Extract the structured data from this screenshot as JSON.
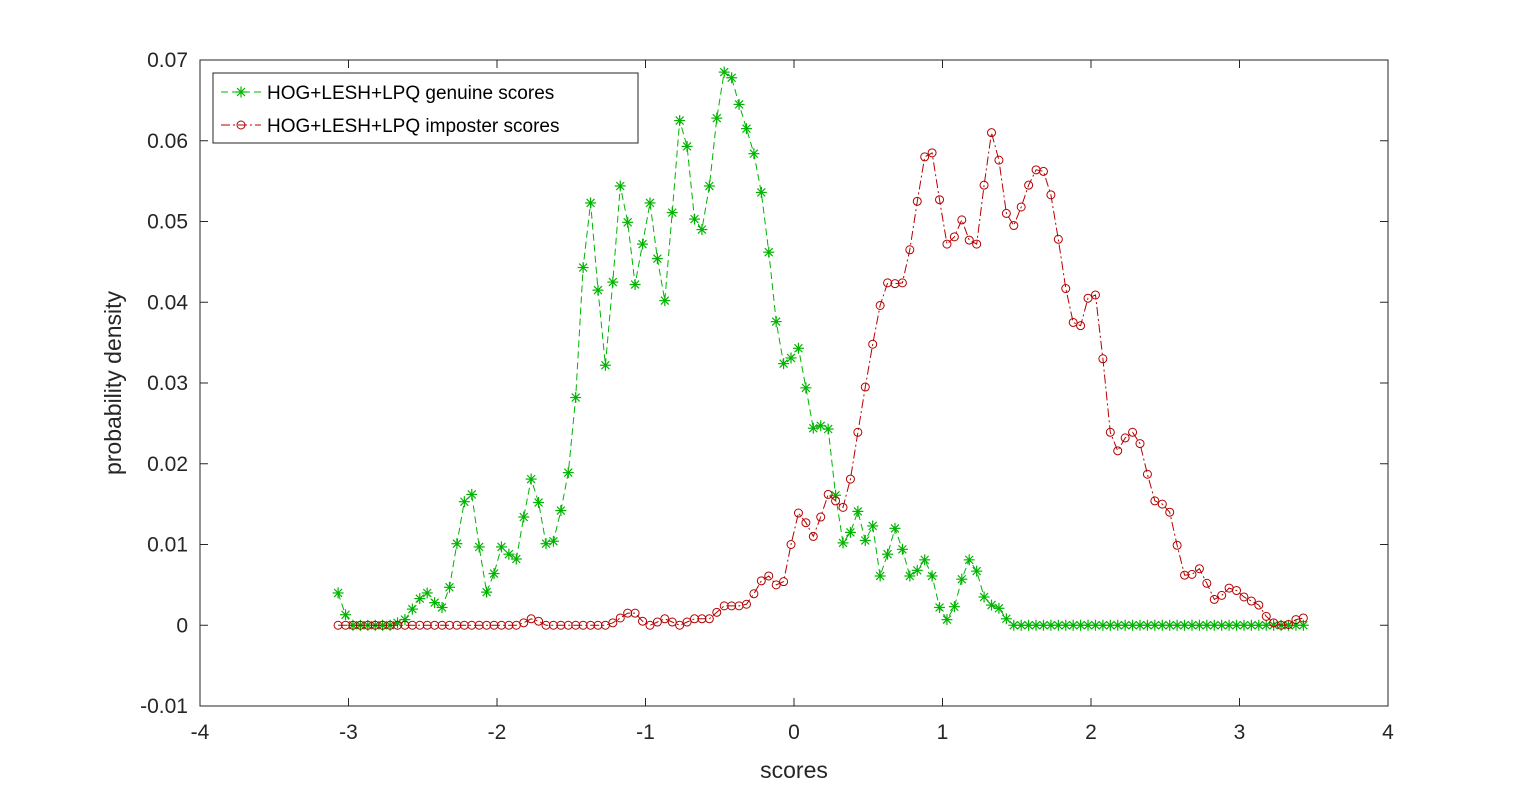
{
  "chart_data": {
    "type": "line",
    "title": "",
    "xlabel": "scores",
    "ylabel": "probability density",
    "xlim": [
      -4,
      4
    ],
    "ylim": [
      -0.01,
      0.07
    ],
    "xticks": [
      "-4",
      "-3",
      "-2",
      "-1",
      "0",
      "1",
      "2",
      "3",
      "4"
    ],
    "yticks": [
      "-0.01",
      "0",
      "0.01",
      "0.02",
      "0.03",
      "0.04",
      "0.05",
      "0.06",
      "0.07"
    ],
    "grid": false,
    "legend_position": "top-left",
    "series": [
      {
        "name": "HOG+LESH+LPQ genuine scores",
        "color": "#00b400",
        "line_style": "dashed",
        "marker": "asterisk",
        "x": [
          -3.07,
          -3.02,
          -2.97,
          -2.92,
          -2.87,
          -2.82,
          -2.77,
          -2.72,
          -2.67,
          -2.62,
          -2.57,
          -2.52,
          -2.47,
          -2.42,
          -2.37,
          -2.32,
          -2.27,
          -2.22,
          -2.17,
          -2.12,
          -2.07,
          -2.02,
          -1.97,
          -1.92,
          -1.87,
          -1.82,
          -1.77,
          -1.72,
          -1.67,
          -1.62,
          -1.57,
          -1.52,
          -1.47,
          -1.42,
          -1.37,
          -1.32,
          -1.27,
          -1.22,
          -1.17,
          -1.12,
          -1.07,
          -1.02,
          -0.97,
          -0.92,
          -0.87,
          -0.82,
          -0.77,
          -0.72,
          -0.67,
          -0.62,
          -0.57,
          -0.52,
          -0.47,
          -0.42,
          -0.37,
          -0.32,
          -0.27,
          -0.22,
          -0.17,
          -0.12,
          -0.07,
          -0.02,
          0.03,
          0.08,
          0.13,
          0.18,
          0.23,
          0.28,
          0.33,
          0.38,
          0.43,
          0.48,
          0.53,
          0.58,
          0.63,
          0.68,
          0.73,
          0.78,
          0.83,
          0.88,
          0.93,
          0.98,
          1.03,
          1.08,
          1.13,
          1.18,
          1.23,
          1.28,
          1.33,
          1.38,
          1.43,
          1.48,
          1.53,
          1.58,
          1.63,
          1.68,
          1.73,
          1.78,
          1.83,
          1.88,
          1.93,
          1.98,
          2.03,
          2.08,
          2.13,
          2.18,
          2.23,
          2.28,
          2.33,
          2.38,
          2.43,
          2.48,
          2.53,
          2.58,
          2.63,
          2.68,
          2.73,
          2.78,
          2.83,
          2.88,
          2.93,
          2.98,
          3.03,
          3.08,
          3.13,
          3.18,
          3.23,
          3.28,
          3.33,
          3.38,
          3.43
        ],
        "y": [
          0.004,
          0.0013,
          0,
          0,
          0,
          0,
          0,
          0,
          0.0003,
          0.0007,
          0.002,
          0.0033,
          0.004,
          0.0028,
          0.0022,
          0.0047,
          0.0101,
          0.0153,
          0.0162,
          0.0097,
          0.0041,
          0.0064,
          0.0097,
          0.0088,
          0.0082,
          0.0134,
          0.0181,
          0.0152,
          0.0101,
          0.0104,
          0.0142,
          0.0189,
          0.0282,
          0.0443,
          0.0523,
          0.0415,
          0.0322,
          0.0425,
          0.0544,
          0.0499,
          0.0422,
          0.0472,
          0.0523,
          0.0454,
          0.0402,
          0.0511,
          0.0625,
          0.0593,
          0.0503,
          0.049,
          0.0544,
          0.0628,
          0.0685,
          0.0678,
          0.0645,
          0.0615,
          0.0584,
          0.0536,
          0.0462,
          0.0376,
          0.0324,
          0.0331,
          0.0343,
          0.0294,
          0.0244,
          0.0247,
          0.0243,
          0.0161,
          0.0102,
          0.0115,
          0.0141,
          0.0105,
          0.0123,
          0.0061,
          0.0088,
          0.012,
          0.0094,
          0.0061,
          0.0068,
          0.0081,
          0.0061,
          0.0022,
          0.0007,
          0.0023,
          0.0057,
          0.0081,
          0.0067,
          0.0035,
          0.0025,
          0.0021,
          0.0008,
          0,
          0,
          0,
          0,
          0,
          0,
          0,
          0,
          0,
          0,
          0,
          0,
          0,
          0,
          0,
          0,
          0,
          0,
          0,
          0,
          0,
          0,
          0,
          0,
          0,
          0,
          0,
          0,
          0,
          0,
          0,
          0,
          0,
          0,
          0,
          0,
          0,
          0,
          0,
          0
        ]
      },
      {
        "name": "HOG+LESH+LPQ imposter scores",
        "color": "#b40000",
        "line_style": "dash-dot",
        "marker": "circle",
        "x": [
          -3.07,
          -3.02,
          -2.97,
          -2.92,
          -2.87,
          -2.82,
          -2.77,
          -2.72,
          -2.67,
          -2.62,
          -2.57,
          -2.52,
          -2.47,
          -2.42,
          -2.37,
          -2.32,
          -2.27,
          -2.22,
          -2.17,
          -2.12,
          -2.07,
          -2.02,
          -1.97,
          -1.92,
          -1.87,
          -1.82,
          -1.77,
          -1.72,
          -1.67,
          -1.62,
          -1.57,
          -1.52,
          -1.47,
          -1.42,
          -1.37,
          -1.32,
          -1.27,
          -1.22,
          -1.17,
          -1.12,
          -1.07,
          -1.02,
          -0.97,
          -0.92,
          -0.87,
          -0.82,
          -0.77,
          -0.72,
          -0.67,
          -0.62,
          -0.57,
          -0.52,
          -0.47,
          -0.42,
          -0.37,
          -0.32,
          -0.27,
          -0.22,
          -0.17,
          -0.12,
          -0.07,
          -0.02,
          0.03,
          0.08,
          0.13,
          0.18,
          0.23,
          0.28,
          0.33,
          0.38,
          0.43,
          0.48,
          0.53,
          0.58,
          0.63,
          0.68,
          0.73,
          0.78,
          0.83,
          0.88,
          0.93,
          0.98,
          1.03,
          1.08,
          1.13,
          1.18,
          1.23,
          1.28,
          1.33,
          1.38,
          1.43,
          1.48,
          1.53,
          1.58,
          1.63,
          1.68,
          1.73,
          1.78,
          1.83,
          1.88,
          1.93,
          1.98,
          2.03,
          2.08,
          2.13,
          2.18,
          2.23,
          2.28,
          2.33,
          2.38,
          2.43,
          2.48,
          2.53,
          2.58,
          2.63,
          2.68,
          2.73,
          2.78,
          2.83,
          2.88,
          2.93,
          2.98,
          3.03,
          3.08,
          3.13,
          3.18,
          3.23,
          3.28,
          3.33,
          3.38,
          3.43
        ],
        "y": [
          0,
          0,
          0,
          0,
          0,
          0,
          0,
          0,
          0,
          0,
          0,
          0,
          0,
          0,
          0,
          0,
          0,
          0,
          0,
          0,
          0,
          0,
          0,
          0,
          0,
          0.0003,
          0.0008,
          0.0005,
          0,
          0,
          0,
          0,
          0,
          0,
          0,
          0,
          0,
          0.0003,
          0.0009,
          0.0015,
          0.0015,
          0.0005,
          0,
          0.0004,
          0.0008,
          0.0004,
          0,
          0.0004,
          0.0008,
          0.0008,
          0.0008,
          0.0016,
          0.0024,
          0.0024,
          0.0024,
          0.0026,
          0.0039,
          0.0055,
          0.0061,
          0.005,
          0.0054,
          0.01,
          0.0139,
          0.0127,
          0.011,
          0.0134,
          0.0162,
          0.0154,
          0.0146,
          0.0181,
          0.0239,
          0.0295,
          0.0348,
          0.0396,
          0.0424,
          0.0423,
          0.0424,
          0.0465,
          0.0525,
          0.058,
          0.0585,
          0.0527,
          0.0472,
          0.0481,
          0.0502,
          0.0477,
          0.0472,
          0.0545,
          0.061,
          0.0576,
          0.051,
          0.0495,
          0.0518,
          0.0545,
          0.0564,
          0.0562,
          0.0533,
          0.0478,
          0.0417,
          0.0375,
          0.0371,
          0.0405,
          0.0409,
          0.033,
          0.0239,
          0.0216,
          0.0232,
          0.0239,
          0.0225,
          0.0187,
          0.0154,
          0.015,
          0.014,
          0.0099,
          0.0062,
          0.0063,
          0.007,
          0.0052,
          0.0032,
          0.0037,
          0.0046,
          0.0043,
          0.0035,
          0.003,
          0.0025,
          0.0011,
          0.0003,
          0,
          0.0001,
          0.0007,
          0.0009
        ]
      }
    ]
  }
}
